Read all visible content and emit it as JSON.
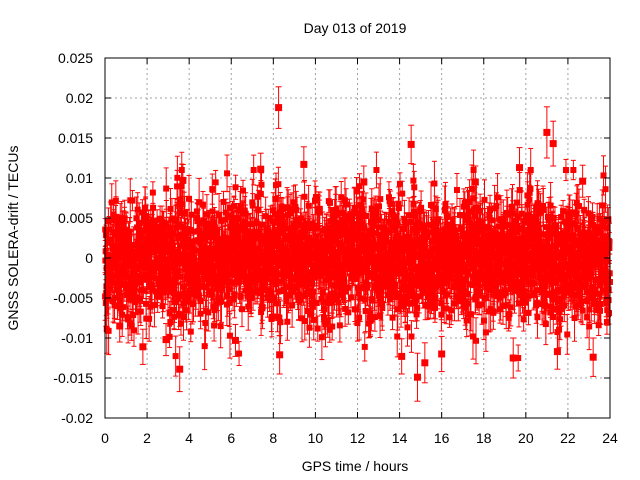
{
  "chart_data": {
    "type": "scatter",
    "title": "Day 013 of 2019",
    "xlabel": "GPS time / hours",
    "ylabel": "GNSS SOLERA-drift / TECUs",
    "xlim": [
      0,
      24
    ],
    "ylim": [
      -0.02,
      0.025
    ],
    "x_ticks": [
      0,
      2,
      4,
      6,
      8,
      10,
      12,
      14,
      16,
      18,
      20,
      22,
      24
    ],
    "x_tick_labels": [
      "0",
      "2",
      "4",
      "6",
      "8",
      "10",
      "12",
      "14",
      "16",
      "18",
      "20",
      "22",
      "24"
    ],
    "y_ticks": [
      -0.02,
      -0.015,
      -0.01,
      -0.005,
      0,
      0.005,
      0.01,
      0.015,
      0.02,
      0.025
    ],
    "y_tick_labels": [
      "-0.02",
      "-0.015",
      "-0.01",
      "-0.005",
      "0",
      "0.005",
      "0.01",
      "0.015",
      "0.02",
      "0.025"
    ],
    "grid": true,
    "marker": "square",
    "series_color": "#ff0000",
    "series": [
      {
        "name": "SOLERA-drift",
        "sampling": "dense, ~1 point per 30 s over 24 h; approx. mean 0, std 0.004, error bars ~0.002",
        "highlighted_points": [
          {
            "x": 8.25,
            "y": 0.0188,
            "err": 0.0026
          },
          {
            "x": 14.55,
            "y": 0.0142,
            "err": 0.0024
          },
          {
            "x": 21.0,
            "y": 0.0157,
            "err": 0.0032
          },
          {
            "x": 21.3,
            "y": 0.0143,
            "err": 0.0028
          },
          {
            "x": 9.45,
            "y": 0.0117,
            "err": 0.0022
          },
          {
            "x": 7.4,
            "y": 0.0111,
            "err": 0.002
          },
          {
            "x": 19.7,
            "y": 0.0113,
            "err": 0.0025
          },
          {
            "x": 3.55,
            "y": -0.0139,
            "err": 0.0028
          },
          {
            "x": 14.85,
            "y": -0.0149,
            "err": 0.003
          },
          {
            "x": 15.2,
            "y": -0.0131,
            "err": 0.0025
          },
          {
            "x": 1.8,
            "y": -0.0111,
            "err": 0.0022
          },
          {
            "x": 8.3,
            "y": -0.0121,
            "err": 0.0024
          },
          {
            "x": 19.4,
            "y": -0.0125,
            "err": 0.0025
          },
          {
            "x": 21.5,
            "y": -0.0117,
            "err": 0.0022
          },
          {
            "x": 23.2,
            "y": -0.0124,
            "err": 0.0024
          },
          {
            "x": 14.1,
            "y": -0.0123,
            "err": 0.0022
          },
          {
            "x": 0.7,
            "y": -0.0085,
            "err": 0.002
          },
          {
            "x": 2.9,
            "y": -0.0102,
            "err": 0.002
          },
          {
            "x": 6.2,
            "y": -0.0103,
            "err": 0.002
          },
          {
            "x": 16.0,
            "y": -0.012,
            "err": 0.0022
          },
          {
            "x": 3.7,
            "y": 0.0097,
            "err": 0.002
          },
          {
            "x": 12.3,
            "y": 0.0095,
            "err": 0.002
          },
          {
            "x": 17.6,
            "y": 0.0095,
            "err": 0.002
          },
          {
            "x": 22.7,
            "y": 0.0096,
            "err": 0.002
          }
        ]
      }
    ]
  }
}
